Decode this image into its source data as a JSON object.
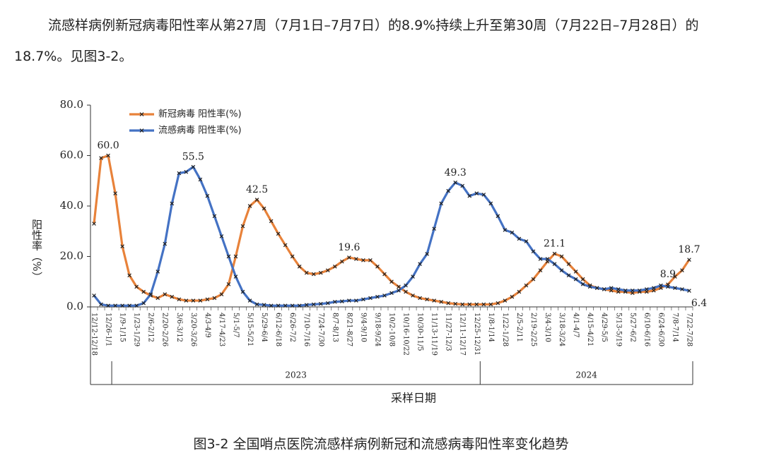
{
  "paragraph": "流感样病例新冠病毒阳性率从第27周（7月1日–7月7日）的8.9%持续上升至第30周（7月22日–7月28日）的18.7%。见图3-2。",
  "caption": "图3-2 全国哨点医院流感样病例新冠和流感病毒阳性率变化趋势",
  "chart_data": {
    "type": "line",
    "ylabel": "阳性率（%）",
    "xlabel": "采样日期",
    "ylim": [
      0,
      80
    ],
    "yticks": [
      {
        "value": 0,
        "label": "0.0"
      },
      {
        "value": 20,
        "label": "20.0"
      },
      {
        "value": 40,
        "label": "40.0"
      },
      {
        "value": 60,
        "label": "60.0"
      },
      {
        "value": 80,
        "label": "80.0"
      }
    ],
    "categories": [
      "12/12-12/18",
      null,
      "12/26-1/1",
      null,
      "1/9-1/15",
      null,
      "1/23-1/29",
      null,
      "2/6-2/12",
      null,
      "2/20-2/26",
      null,
      "3/6-3/12",
      null,
      "3/20-3/26",
      null,
      "4/3-4/9",
      null,
      "4/17-4/23",
      null,
      "5/1-5/7",
      null,
      "5/15-5/21",
      null,
      "5/29-6/4",
      null,
      "6/12-6/18",
      null,
      "6/26-7/2",
      null,
      "7/10-7/16",
      null,
      "7/24-7/30",
      null,
      "8/7-8/13",
      null,
      "8/21-8/27",
      null,
      "9/4-9/10",
      null,
      "9/18-9/24",
      null,
      "10/2-10/8",
      null,
      "10/16-10/22",
      null,
      "10/30-11/5",
      null,
      "11/13-11/19",
      null,
      "11/27-12/3",
      null,
      "12/11-12/17",
      null,
      "12/25-12/31",
      null,
      "1/8-1/14",
      null,
      "1/22-1/28",
      null,
      "2/5-2/11",
      null,
      "2/19-2/25",
      null,
      "3/4-3/10",
      null,
      "3/18-3/24",
      null,
      "4/1-4/7",
      null,
      "4/15-4/21",
      null,
      "4/29-5/5",
      null,
      "5/13-5/19",
      null,
      "5/27-6/2",
      null,
      "6/10-6/16",
      null,
      "6/24-6/30",
      null,
      "7/8-7/14",
      null,
      "7/22-7/28"
    ],
    "year_groups": [
      {
        "label": "2023",
        "start": 3,
        "end": 54
      },
      {
        "label": "2024",
        "start": 55,
        "end": 84
      }
    ],
    "series": [
      {
        "name": "新冠病毒 阳性率(%)",
        "color": "#e8823a",
        "values": [
          33,
          59,
          60,
          45,
          24,
          12.5,
          8,
          6,
          4.5,
          3.5,
          5,
          4,
          3,
          2.5,
          2.5,
          2.5,
          3,
          3.5,
          5,
          9,
          20,
          32,
          40,
          42.5,
          39,
          34,
          29,
          24.5,
          20,
          16,
          13.5,
          13,
          13.5,
          14.5,
          16,
          18,
          19.6,
          19,
          18.5,
          18.5,
          16,
          13,
          10,
          8,
          6,
          4.5,
          3.5,
          3,
          2.5,
          2,
          1.5,
          1.2,
          1,
          1,
          1,
          1,
          1,
          1.5,
          2.5,
          4,
          6,
          8.5,
          11,
          14.5,
          18,
          21.1,
          20,
          17,
          14,
          11,
          8.5,
          7.5,
          7,
          6.5,
          6,
          6,
          5.5,
          6,
          6,
          6.5,
          7.5,
          8.9,
          12,
          14.5,
          18.7
        ],
        "value_labels": [
          null,
          null,
          "60.0",
          null,
          null,
          null,
          null,
          null,
          null,
          null,
          null,
          null,
          null,
          null,
          null,
          null,
          null,
          null,
          null,
          null,
          null,
          null,
          null,
          "42.5",
          null,
          null,
          null,
          null,
          null,
          null,
          null,
          null,
          null,
          null,
          null,
          null,
          "19.6",
          null,
          null,
          null,
          null,
          null,
          null,
          null,
          null,
          null,
          null,
          null,
          null,
          null,
          null,
          null,
          null,
          null,
          null,
          null,
          null,
          null,
          null,
          null,
          null,
          null,
          null,
          null,
          null,
          "21.1",
          null,
          null,
          null,
          null,
          null,
          null,
          null,
          null,
          null,
          null,
          null,
          null,
          null,
          null,
          null,
          "8.9",
          null,
          null,
          "18.7"
        ]
      },
      {
        "name": "流感病毒 阳性率(%)",
        "color": "#4472c4",
        "values": [
          4.5,
          1,
          0.5,
          0.5,
          0.5,
          0.5,
          0.5,
          1.5,
          5,
          14,
          25,
          41,
          53,
          53.5,
          55.5,
          50.5,
          44,
          36,
          28,
          20,
          12,
          6,
          2.5,
          1,
          0.8,
          0.5,
          0.5,
          0.5,
          0.5,
          0.5,
          0.8,
          1,
          1.2,
          1.5,
          2,
          2.2,
          2.5,
          2.5,
          3,
          3.5,
          4,
          4.5,
          5.5,
          6.5,
          8.5,
          12,
          17,
          21,
          31,
          41,
          46,
          49.3,
          48,
          44,
          45,
          44.5,
          41,
          36,
          30.5,
          29.5,
          27,
          26,
          22,
          19,
          19,
          17,
          14.5,
          12.5,
          11,
          9,
          8,
          7.5,
          7,
          7.5,
          7,
          6.5,
          6.5,
          6.5,
          7,
          7.5,
          8.5,
          8,
          7.5,
          7,
          6.4
        ],
        "value_labels": [
          null,
          null,
          null,
          null,
          null,
          null,
          null,
          null,
          null,
          null,
          null,
          null,
          null,
          null,
          "55.5",
          null,
          null,
          null,
          null,
          null,
          null,
          null,
          null,
          null,
          null,
          null,
          null,
          null,
          null,
          null,
          null,
          null,
          null,
          null,
          null,
          null,
          null,
          null,
          null,
          null,
          null,
          null,
          null,
          null,
          null,
          null,
          null,
          null,
          null,
          null,
          null,
          "49.3",
          null,
          null,
          null,
          null,
          null,
          null,
          null,
          null,
          null,
          null,
          null,
          null,
          null,
          null,
          null,
          null,
          null,
          null,
          null,
          null,
          null,
          null,
          null,
          null,
          null,
          null,
          null,
          null,
          null,
          null,
          null,
          null,
          "6.4"
        ]
      }
    ]
  }
}
